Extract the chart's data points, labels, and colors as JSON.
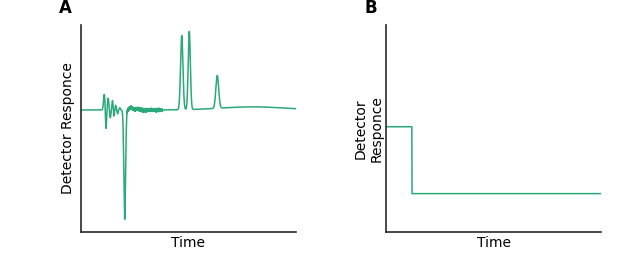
{
  "line_color": "#2aaa7a",
  "line_width": 1.1,
  "bg_color": "#ffffff",
  "label_A": "A",
  "label_B": "B",
  "xlabel": "Time",
  "ylabel_A": "Detector Responce",
  "ylabel_B": "Detector\nResponce",
  "label_fontsize": 10,
  "panel_label_fontsize": 12,
  "axis_color": "#2a2a2a",
  "panel_A": {
    "xlim": [
      0,
      10
    ],
    "ylim": [
      -1.5,
      1.15
    ]
  },
  "panel_B": {
    "xlim": [
      0,
      10
    ],
    "ylim": [
      -0.05,
      0.6
    ]
  }
}
